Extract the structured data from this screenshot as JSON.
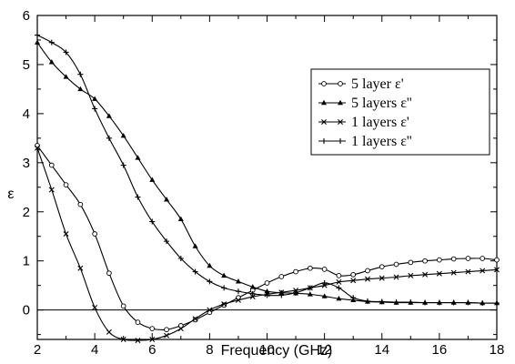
{
  "chart_data": {
    "type": "line",
    "title": "",
    "xlabel": "Frequency (GHz)",
    "ylabel": "ε",
    "xlim": [
      2,
      18
    ],
    "ylim": [
      -0.6,
      6
    ],
    "xticks": [
      "2",
      "4",
      "6",
      "8",
      "10",
      "12",
      "14",
      "16",
      "18"
    ],
    "yticks": [
      "0",
      "1",
      "2",
      "3",
      "4",
      "5",
      "6"
    ],
    "grid": false,
    "legend_position": "right",
    "reference_line_y": 0,
    "series": [
      {
        "name": "5 layer  ε'",
        "marker": "circle",
        "x": [
          2,
          2.5,
          3,
          3.5,
          4,
          4.5,
          5,
          5.5,
          6,
          6.5,
          7,
          7.5,
          8,
          8.5,
          9,
          9.5,
          10,
          10.5,
          11,
          11.5,
          12,
          12.5,
          13,
          13.5,
          14,
          14.5,
          15,
          15.5,
          16,
          16.5,
          17,
          17.5,
          18
        ],
        "y": [
          3.35,
          2.95,
          2.55,
          2.15,
          1.55,
          0.75,
          0.08,
          -0.25,
          -0.38,
          -0.4,
          -0.32,
          -0.2,
          -0.05,
          0.1,
          0.25,
          0.4,
          0.55,
          0.68,
          0.78,
          0.85,
          0.83,
          0.7,
          0.72,
          0.8,
          0.88,
          0.93,
          0.97,
          1.0,
          1.02,
          1.04,
          1.05,
          1.05,
          1.02
        ]
      },
      {
        "name": "5 layers ε''",
        "marker": "triangle",
        "x": [
          2,
          2.5,
          3,
          3.5,
          4,
          4.5,
          5,
          5.5,
          6,
          6.5,
          7,
          7.5,
          8,
          8.5,
          9,
          9.5,
          10,
          10.5,
          11,
          11.5,
          12,
          12.5,
          13,
          13.5,
          14,
          14.5,
          15,
          15.5,
          16,
          16.5,
          17,
          17.5,
          18
        ],
        "y": [
          5.45,
          5.05,
          4.75,
          4.5,
          4.3,
          3.95,
          3.55,
          3.1,
          2.65,
          2.25,
          1.85,
          1.3,
          0.9,
          0.7,
          0.58,
          0.47,
          0.38,
          0.35,
          0.34,
          0.32,
          0.28,
          0.23,
          0.2,
          0.17,
          0.16,
          0.15,
          0.15,
          0.15,
          0.15,
          0.15,
          0.15,
          0.14,
          0.14
        ]
      },
      {
        "name": "1 layers ε'",
        "marker": "x",
        "x": [
          2,
          2.5,
          3,
          3.5,
          4,
          4.5,
          5,
          5.5,
          6,
          6.5,
          7,
          7.5,
          8,
          8.5,
          9,
          9.5,
          10,
          10.5,
          11,
          11.5,
          12,
          12.5,
          13,
          13.5,
          14,
          14.5,
          15,
          15.5,
          16,
          16.5,
          17,
          17.5,
          18
        ],
        "y": [
          3.3,
          2.45,
          1.55,
          0.85,
          0.05,
          -0.45,
          -0.6,
          -0.62,
          -0.6,
          -0.52,
          -0.38,
          -0.18,
          0.0,
          0.12,
          0.2,
          0.27,
          0.32,
          0.36,
          0.4,
          0.45,
          0.5,
          0.57,
          0.6,
          0.63,
          0.65,
          0.67,
          0.7,
          0.72,
          0.74,
          0.76,
          0.78,
          0.8,
          0.82
        ]
      },
      {
        "name": "1 layers ε''",
        "marker": "plus",
        "x": [
          2,
          2.5,
          3,
          3.5,
          4,
          4.5,
          5,
          5.5,
          6,
          6.5,
          7,
          7.5,
          8,
          8.5,
          9,
          9.5,
          10,
          10.5,
          11,
          11.5,
          12,
          12.5,
          13,
          13.5,
          14,
          14.5,
          15,
          15.5,
          16,
          16.5,
          17,
          17.5,
          18
        ],
        "y": [
          5.6,
          5.45,
          5.25,
          4.8,
          4.1,
          3.5,
          2.95,
          2.3,
          1.8,
          1.4,
          1.05,
          0.78,
          0.58,
          0.45,
          0.38,
          0.33,
          0.3,
          0.3,
          0.35,
          0.45,
          0.55,
          0.45,
          0.25,
          0.18,
          0.17,
          0.16,
          0.16,
          0.15,
          0.15,
          0.15,
          0.15,
          0.14,
          0.14
        ]
      }
    ]
  }
}
